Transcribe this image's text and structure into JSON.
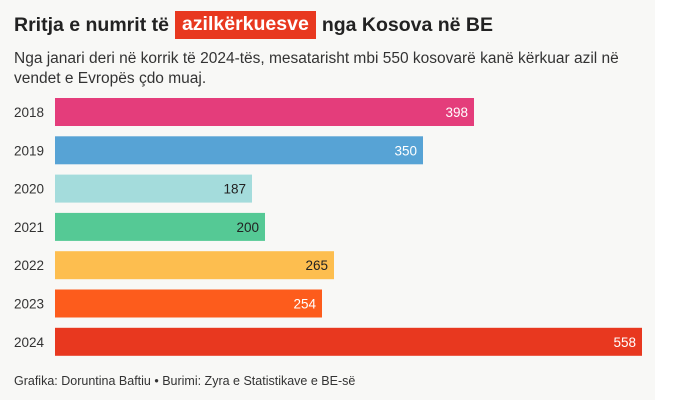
{
  "title": {
    "before": "Rritja e numrit të",
    "highlight": "azilkërkuesve",
    "after": "nga Kosova në BE"
  },
  "subtitle": "Nga janari deri në korrik të 2024-tës, mesatarisht mbi 550 kosovarë kanë kërkuar azil në vendet e Evropës çdo muaj.",
  "footer": "Grafika: Doruntina Baftiu • Burimi: Zyra e Statistikave e BE-së",
  "colors": {
    "background": "#f8f8f6",
    "highlight": "#e8381f"
  },
  "chart_data": {
    "type": "bar",
    "orientation": "horizontal",
    "categories": [
      "2018",
      "2019",
      "2020",
      "2021",
      "2022",
      "2023",
      "2024"
    ],
    "values": [
      398,
      350,
      187,
      200,
      265,
      254,
      558
    ],
    "bar_colors": [
      "#e43d7b",
      "#57a3d5",
      "#a4dcdc",
      "#55c995",
      "#fdbe4f",
      "#fd5c1c",
      "#e8381f"
    ],
    "label_colors": [
      "#ffffff",
      "#ffffff",
      "#222222",
      "#222222",
      "#222222",
      "#ffffff",
      "#ffffff"
    ],
    "xlim": [
      0,
      558
    ],
    "grid": false
  }
}
